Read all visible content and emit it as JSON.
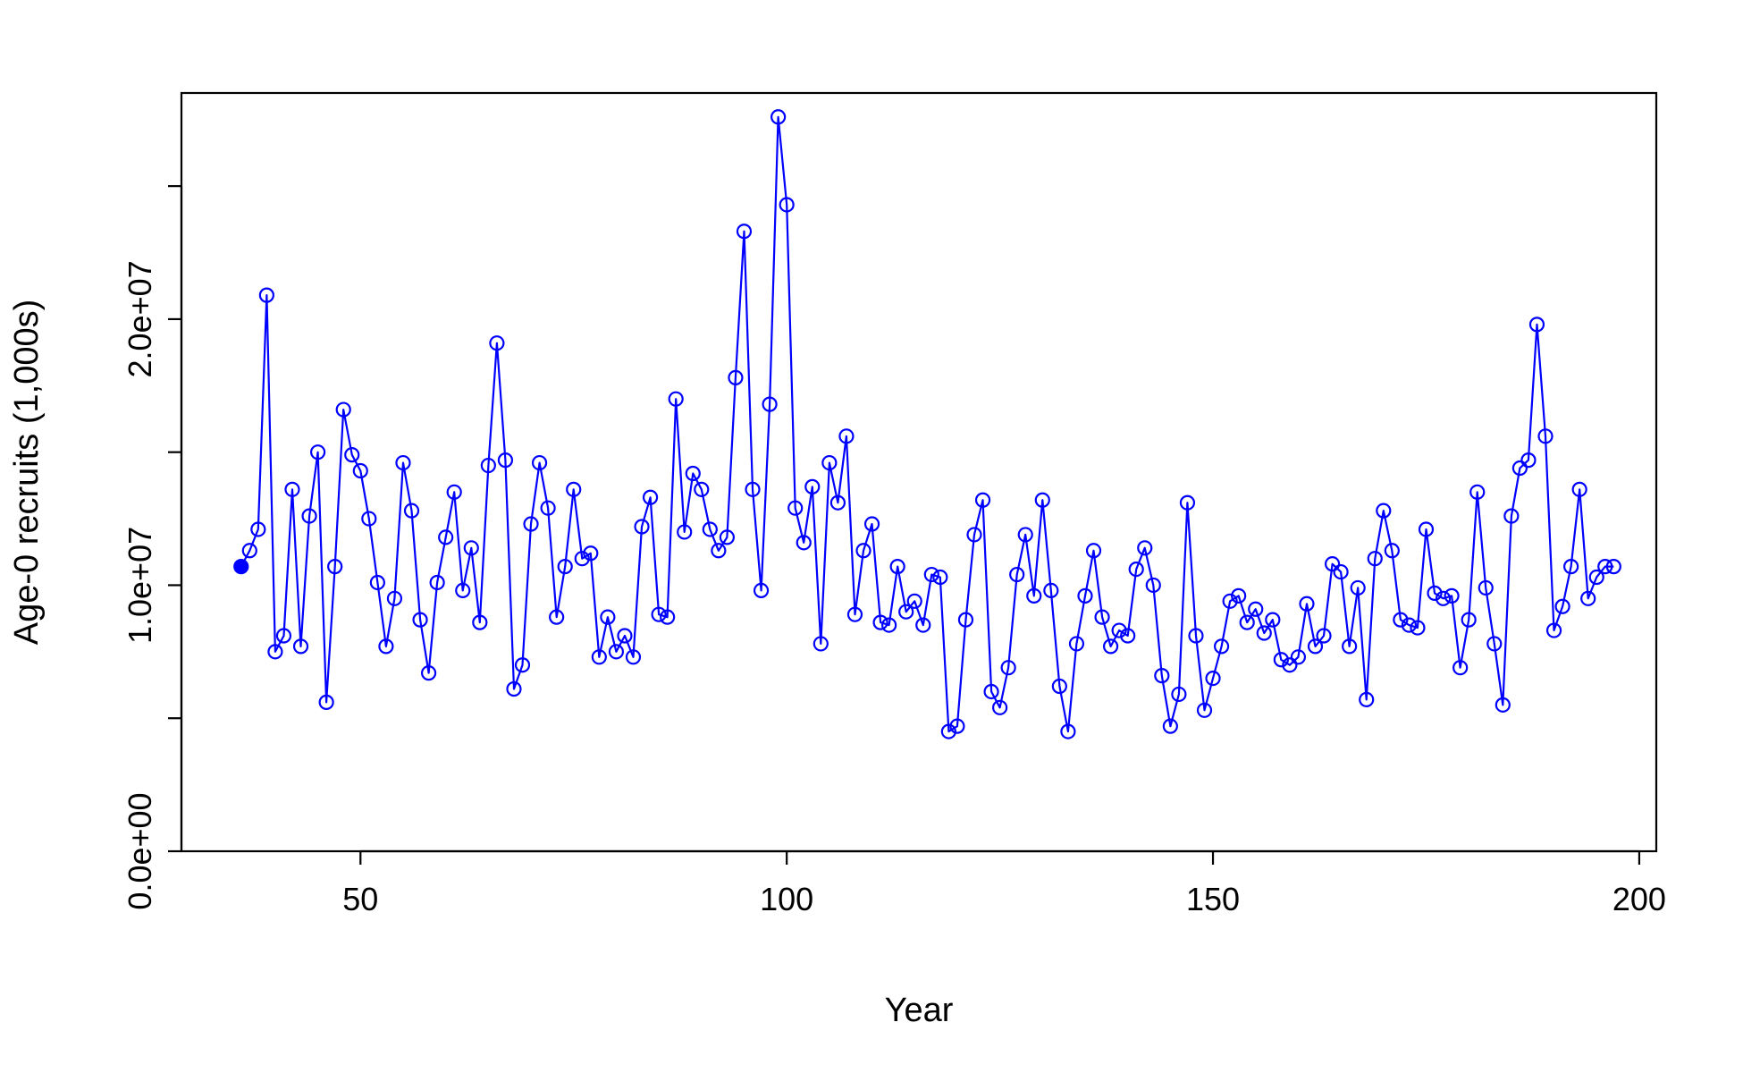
{
  "chart_data": {
    "type": "line",
    "xlabel": "Year",
    "ylabel": "Age-0 recruits (1,000s)",
    "xlim": [
      29,
      202
    ],
    "ylim": [
      0,
      28500000
    ],
    "xticks": [
      50,
      100,
      150,
      200
    ],
    "yticks": [
      0,
      5000000,
      10000000,
      15000000,
      20000000,
      25000000
    ],
    "ytick_labels": [
      "0.0e+00",
      "",
      "1.0e+07",
      "",
      "2.0e+07",
      ""
    ],
    "line_color": "#0000ff",
    "first_point_filled": true,
    "grid": false,
    "legend": "none",
    "x": [
      36,
      37,
      38,
      39,
      40,
      41,
      42,
      43,
      44,
      45,
      46,
      47,
      48,
      49,
      50,
      51,
      52,
      53,
      54,
      55,
      56,
      57,
      58,
      59,
      60,
      61,
      62,
      63,
      64,
      65,
      66,
      67,
      68,
      69,
      70,
      71,
      72,
      73,
      74,
      75,
      76,
      77,
      78,
      79,
      80,
      81,
      82,
      83,
      84,
      85,
      86,
      87,
      88,
      89,
      90,
      91,
      92,
      93,
      94,
      95,
      96,
      97,
      98,
      99,
      100,
      101,
      102,
      103,
      104,
      105,
      106,
      107,
      108,
      109,
      110,
      111,
      112,
      113,
      114,
      115,
      116,
      117,
      118,
      119,
      120,
      121,
      122,
      123,
      124,
      125,
      126,
      127,
      128,
      129,
      130,
      131,
      132,
      133,
      134,
      135,
      136,
      137,
      138,
      139,
      140,
      141,
      142,
      143,
      144,
      145,
      146,
      147,
      148,
      149,
      150,
      151,
      152,
      153,
      154,
      155,
      156,
      157,
      158,
      159,
      160,
      161,
      162,
      163,
      164,
      165,
      166,
      167,
      168,
      169,
      170,
      171,
      172,
      173,
      174,
      175,
      176,
      177,
      178,
      179,
      180,
      181,
      182,
      183,
      184,
      185,
      186,
      187,
      188,
      189,
      190,
      191,
      192,
      193,
      194,
      195,
      196,
      197
    ],
    "y": [
      10700000,
      11300000,
      12100000,
      20900000,
      7500000,
      8100000,
      13600000,
      7700000,
      12600000,
      15000000,
      5600000,
      10700000,
      16600000,
      14900000,
      14300000,
      12500000,
      10100000,
      7700000,
      9500000,
      14600000,
      12800000,
      8700000,
      6700000,
      10100000,
      11800000,
      13500000,
      9800000,
      11400000,
      8600000,
      14500000,
      19100000,
      14700000,
      6100000,
      7000000,
      12300000,
      14600000,
      12900000,
      8800000,
      10700000,
      13600000,
      11000000,
      11200000,
      7300000,
      8800000,
      7500000,
      8100000,
      7300000,
      12200000,
      13300000,
      8900000,
      8800000,
      17000000,
      12000000,
      14200000,
      13600000,
      12100000,
      11300000,
      11800000,
      17800000,
      23300000,
      13600000,
      9800000,
      16800000,
      27600000,
      24300000,
      12900000,
      11600000,
      13700000,
      7800000,
      14600000,
      13100000,
      15600000,
      8900000,
      11300000,
      12300000,
      8600000,
      8500000,
      10700000,
      9000000,
      9400000,
      8500000,
      10400000,
      10300000,
      4500000,
      4700000,
      8700000,
      11900000,
      13200000,
      6000000,
      5400000,
      6900000,
      10400000,
      11900000,
      9600000,
      13200000,
      9800000,
      6200000,
      4500000,
      7800000,
      9600000,
      11300000,
      8800000,
      7700000,
      8300000,
      8100000,
      10600000,
      11400000,
      10000000,
      6600000,
      4700000,
      5900000,
      13100000,
      8100000,
      5300000,
      6500000,
      7700000,
      9400000,
      9600000,
      8600000,
      9100000,
      8200000,
      8700000,
      7200000,
      7000000,
      7300000,
      9300000,
      7700000,
      8100000,
      10800000,
      10500000,
      7700000,
      9900000,
      5700000,
      11000000,
      12800000,
      11300000,
      8700000,
      8500000,
      8400000,
      12100000,
      9700000,
      9500000,
      9600000,
      6900000,
      8700000,
      13500000,
      9900000,
      7800000,
      5500000,
      12600000,
      14400000,
      14700000,
      19800000,
      15600000,
      8300000,
      9200000,
      10700000,
      13600000,
      9500000,
      10300000,
      10700000,
      10700000
    ]
  }
}
